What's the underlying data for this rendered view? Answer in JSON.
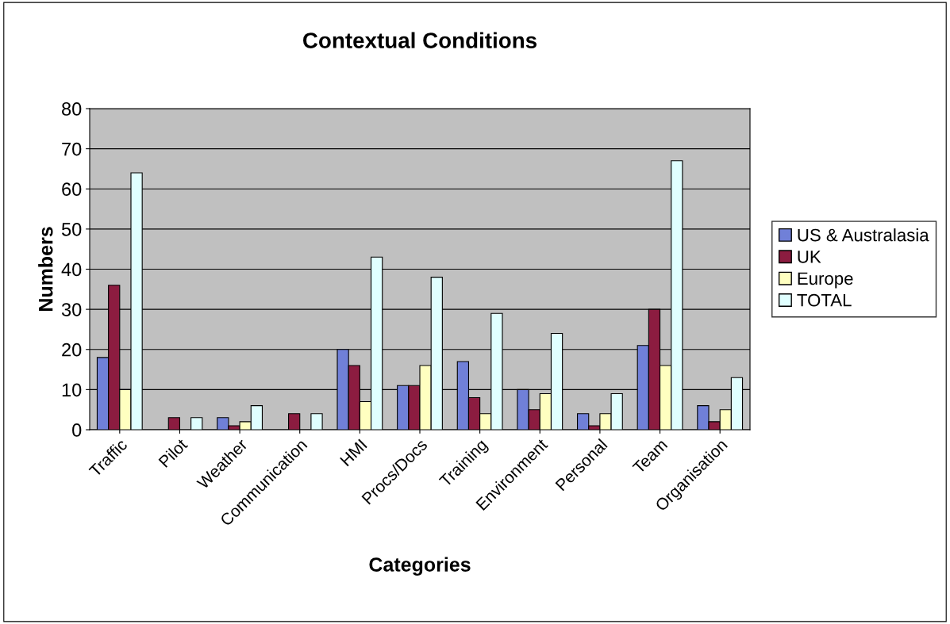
{
  "chart_data": {
    "type": "bar",
    "title": "Contextual Conditions",
    "xlabel": "Categories",
    "ylabel": "Numbers",
    "categories": [
      "Traffic",
      "Pilot",
      "Weather",
      "Communication",
      "HMI",
      "Procs/Docs",
      "Training",
      "Environment",
      "Personal",
      "Team",
      "Organisation"
    ],
    "series": [
      {
        "name": "US & Australasia",
        "color": "#7080d8",
        "values": [
          18,
          null,
          3,
          null,
          20,
          11,
          17,
          10,
          4,
          21,
          6
        ]
      },
      {
        "name": "UK",
        "color": "#8c1c40",
        "values": [
          36,
          3,
          1,
          4,
          16,
          11,
          8,
          5,
          1,
          30,
          2
        ]
      },
      {
        "name": "Europe",
        "color": "#ffffc0",
        "values": [
          10,
          null,
          2,
          null,
          7,
          16,
          4,
          9,
          4,
          16,
          5
        ]
      },
      {
        "name": "TOTAL",
        "color": "#e0ffff",
        "values": [
          64,
          3,
          6,
          4,
          43,
          38,
          29,
          24,
          9,
          67,
          13
        ]
      }
    ],
    "ylim": [
      0,
      80
    ],
    "yticks": [
      0,
      10,
      20,
      30,
      40,
      50,
      60,
      70,
      80
    ],
    "grid": "y",
    "legend": "right"
  }
}
